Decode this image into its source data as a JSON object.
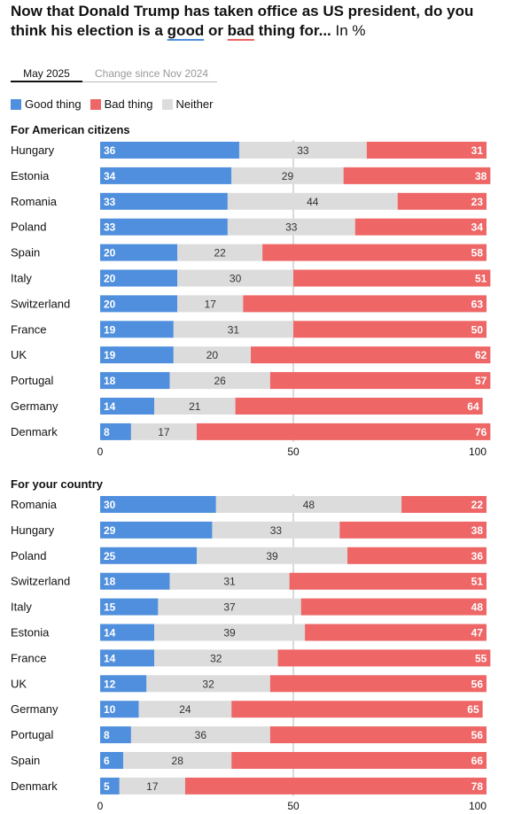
{
  "title": {
    "part1": "Now that Donald Trump has taken office as US president, do you think his election is a ",
    "good": "good",
    "or": " or ",
    "bad": "bad",
    "part2": " thing for...",
    "unit": " In %"
  },
  "tabs": {
    "active": "May 2025",
    "inactive": "Change since Nov 2024"
  },
  "legend": {
    "good": "Good thing",
    "bad": "Bad thing",
    "neither": "Neither"
  },
  "colors": {
    "good": "#4f8fdd",
    "neither": "#dcdcdc",
    "bad": "#ee6666"
  },
  "chart_data": [
    {
      "type": "bar",
      "orientation": "horizontal-stacked",
      "title": "For American citizens",
      "xlim": [
        0,
        100
      ],
      "ticks": [
        0,
        50,
        100
      ],
      "categories": [
        "Hungary",
        "Estonia",
        "Romania",
        "Poland",
        "Spain",
        "Italy",
        "Switzerland",
        "France",
        "UK",
        "Portugal",
        "Germany",
        "Denmark"
      ],
      "series": [
        {
          "name": "Good thing",
          "values": [
            36,
            34,
            33,
            33,
            20,
            20,
            20,
            19,
            19,
            18,
            14,
            8
          ]
        },
        {
          "name": "Neither",
          "values": [
            33,
            29,
            44,
            33,
            22,
            30,
            17,
            31,
            20,
            26,
            21,
            17
          ]
        },
        {
          "name": "Bad thing",
          "values": [
            31,
            38,
            23,
            34,
            58,
            51,
            63,
            50,
            62,
            57,
            64,
            76
          ]
        }
      ]
    },
    {
      "type": "bar",
      "orientation": "horizontal-stacked",
      "title": "For your country",
      "xlim": [
        0,
        100
      ],
      "ticks": [
        0,
        50,
        100
      ],
      "categories": [
        "Romania",
        "Hungary",
        "Poland",
        "Switzerland",
        "Italy",
        "Estonia",
        "France",
        "UK",
        "Germany",
        "Portugal",
        "Spain",
        "Denmark"
      ],
      "series": [
        {
          "name": "Good thing",
          "values": [
            30,
            29,
            25,
            18,
            15,
            14,
            14,
            12,
            10,
            8,
            6,
            5
          ]
        },
        {
          "name": "Neither",
          "values": [
            48,
            33,
            39,
            31,
            37,
            39,
            32,
            32,
            24,
            36,
            28,
            17
          ]
        },
        {
          "name": "Bad thing",
          "values": [
            22,
            38,
            36,
            51,
            48,
            47,
            55,
            56,
            65,
            56,
            66,
            78
          ]
        }
      ]
    }
  ]
}
